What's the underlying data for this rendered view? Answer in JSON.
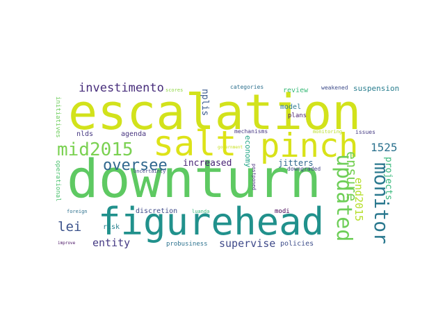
{
  "word_cloud": {
    "words": [
      {
        "text": "escalation",
        "color": "#d2e21b"
      },
      {
        "text": "downturn",
        "color": "#5ec962"
      },
      {
        "text": "figurehead",
        "color": "#21918c"
      },
      {
        "text": "salt",
        "color": "#dde318"
      },
      {
        "text": "pinch",
        "color": "#d8e219"
      },
      {
        "text": "mid2015",
        "color": "#7ad151"
      },
      {
        "text": "oversee",
        "color": "#31688e"
      },
      {
        "text": "investimento",
        "color": "#472d7b"
      },
      {
        "text": "lei",
        "color": "#3b528b"
      },
      {
        "text": "entity",
        "color": "#443983"
      },
      {
        "text": "supervise",
        "color": "#3e4989"
      },
      {
        "text": "increased",
        "color": "#482475"
      },
      {
        "text": "1525",
        "color": "#2c728e"
      },
      {
        "text": "updated",
        "color": "#6ece58"
      },
      {
        "text": "monitor",
        "color": "#2a788e"
      },
      {
        "text": "ensure",
        "color": "#75d054"
      },
      {
        "text": "end2015",
        "color": "#b5de2b"
      },
      {
        "text": "projects",
        "color": "#35b779"
      },
      {
        "text": "nplis",
        "color": "#38598c"
      },
      {
        "text": "economy",
        "color": "#20a486"
      },
      {
        "text": "suspension",
        "color": "#287d8e"
      },
      {
        "text": "jitters",
        "color": "#31688e"
      },
      {
        "text": "model",
        "color": "#2a788e"
      },
      {
        "text": "review",
        "color": "#38b977"
      },
      {
        "text": "plans",
        "color": "#481b6d"
      },
      {
        "text": "nlds",
        "color": "#453781"
      },
      {
        "text": "agenda",
        "color": "#46337f"
      },
      {
        "text": "discretion",
        "color": "#3e4a89"
      },
      {
        "text": "policies",
        "color": "#3d4d8a"
      },
      {
        "text": "probusiness",
        "color": "#2c728e"
      },
      {
        "text": "risk",
        "color": "#277f8e"
      },
      {
        "text": "modi",
        "color": "#440154"
      },
      {
        "text": "weakened",
        "color": "#3e4c8a"
      },
      {
        "text": "mechanisms",
        "color": "#453581"
      },
      {
        "text": "categories",
        "color": "#2d708e"
      },
      {
        "text": "issues",
        "color": "#443a83"
      },
      {
        "text": "downgraded",
        "color": "#424086"
      },
      {
        "text": "scores",
        "color": "#8fd744"
      },
      {
        "text": "uncertainty",
        "color": "#414487"
      },
      {
        "text": "luanda",
        "color": "#35b779"
      },
      {
        "text": "foreign",
        "color": "#2d718e"
      },
      {
        "text": "improve",
        "color": "#471164"
      },
      {
        "text": "monitoring",
        "color": "#b8de29"
      },
      {
        "text": "initiatives",
        "color": "#6ccd5a"
      },
      {
        "text": "operational",
        "color": "#4ac16d"
      },
      {
        "text": "postponed",
        "color": "#472f7d"
      },
      {
        "text": "government",
        "color": "#c8e020"
      }
    ]
  }
}
